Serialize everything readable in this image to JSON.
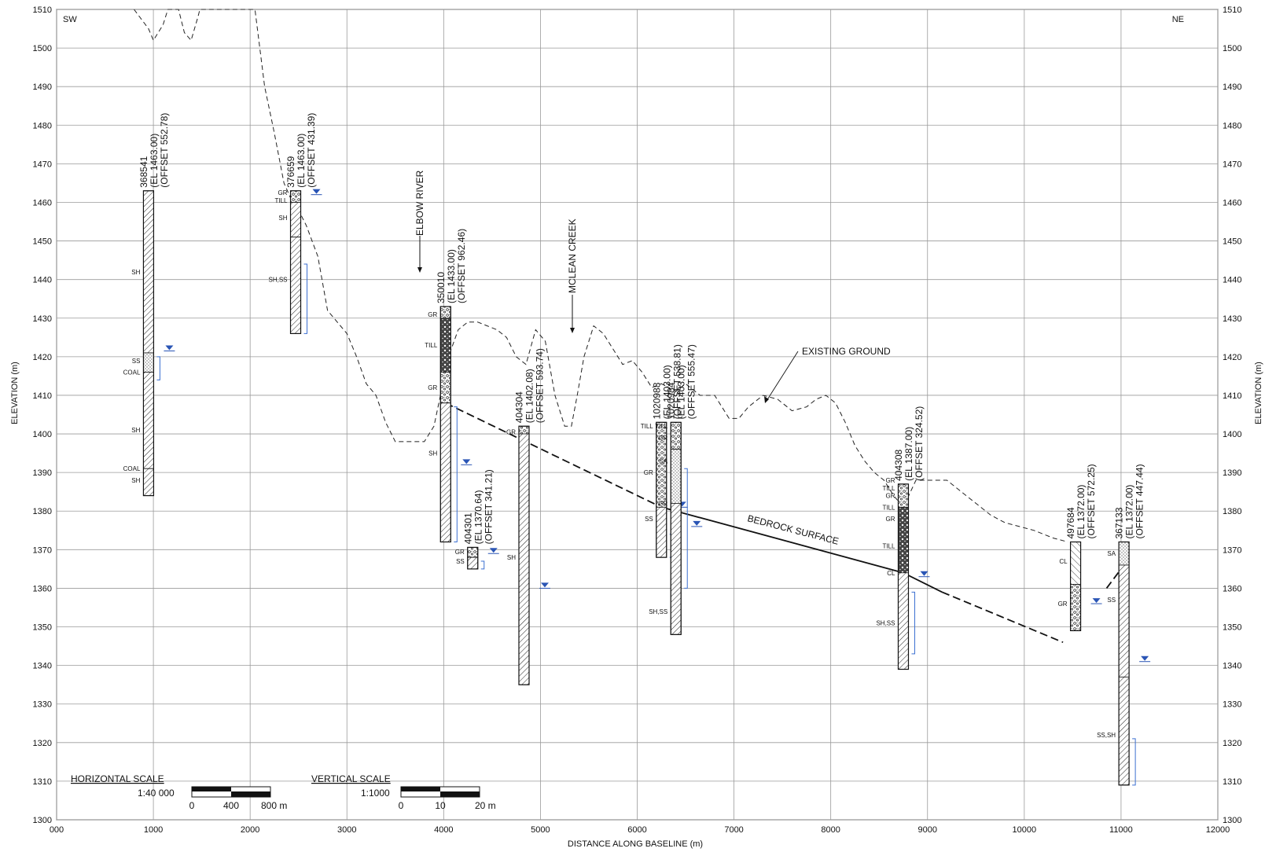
{
  "corners": {
    "left": "SW",
    "right": "NE"
  },
  "axes": {
    "x_title": "DISTANCE ALONG BASELINE (m)",
    "y_title_left": "ELEVATION (m)",
    "y_title_right": "ELEVATION (m)",
    "x_ticks": [
      "000",
      "1000",
      "2000",
      "3000",
      "4000",
      "5000",
      "6000",
      "7000",
      "8000",
      "9000",
      "10000",
      "11000",
      "12000"
    ],
    "x_tick_values": [
      0,
      1000,
      2000,
      3000,
      4000,
      5000,
      6000,
      7000,
      8000,
      9000,
      10000,
      11000,
      12000
    ],
    "y_ticks": [
      1300,
      1310,
      1320,
      1330,
      1340,
      1350,
      1360,
      1370,
      1380,
      1390,
      1400,
      1410,
      1420,
      1430,
      1440,
      1450,
      1460,
      1470,
      1480,
      1490,
      1500,
      1510
    ],
    "xlim": [
      0,
      12000
    ],
    "ylim": [
      1300,
      1510
    ],
    "grid": true
  },
  "labels": {
    "river": "ELBOW  RIVER",
    "creek": "MCLEAN  CREEK",
    "ground": "EXISTING  GROUND",
    "bedrock": "BEDROCK SURFACE"
  },
  "scales": {
    "horizontal": {
      "title": "HORIZONTAL SCALE",
      "ratio": "1:40  000",
      "ticks": [
        "0",
        "400",
        "800 m"
      ]
    },
    "vertical": {
      "title": "VERTICAL SCALE",
      "ratio": "1:1000",
      "ticks": [
        "0",
        "10",
        "20 m"
      ]
    }
  },
  "boreholes": [
    {
      "id": "368541",
      "el": "(EL 1463.00)",
      "offset": "(OFFSET 552.78)",
      "x": 950,
      "top": 1463,
      "bottom": 1384,
      "water": 1421.5,
      "layers": [
        {
          "top": 1463,
          "bottom": 1421,
          "pat": "hatch"
        },
        {
          "top": 1421,
          "bottom": 1416,
          "pat": "dot"
        },
        {
          "top": 1416,
          "bottom": 1391,
          "pat": "hatch"
        },
        {
          "top": 1391,
          "bottom": 1384,
          "pat": "hatch"
        }
      ],
      "soils": [
        {
          "t": "SH",
          "e": 1442
        },
        {
          "t": "SS",
          "e": 1419
        },
        {
          "t": "COAL",
          "e": 1416
        },
        {
          "t": "SH",
          "e": 1401
        },
        {
          "t": "COAL",
          "e": 1391
        },
        {
          "t": "SH",
          "e": 1388
        }
      ],
      "screen": [
        1420,
        1414
      ]
    },
    {
      "id": "376659",
      "el": "(EL 1463.00)",
      "offset": "(OFFSET 431.39)",
      "x": 2470,
      "top": 1463,
      "bottom": 1426,
      "water": 1462,
      "layers": [
        {
          "top": 1463,
          "bottom": 1460,
          "pat": "gravel"
        },
        {
          "top": 1460,
          "bottom": 1451,
          "pat": "hatch"
        },
        {
          "top": 1451,
          "bottom": 1426,
          "pat": "hatch"
        }
      ],
      "soils": [
        {
          "t": "GR",
          "e": 1462.5
        },
        {
          "t": "TILL",
          "e": 1460.5
        },
        {
          "t": "SH",
          "e": 1456
        },
        {
          "t": "SH,SS",
          "e": 1440
        }
      ],
      "screen": [
        1444,
        1426
      ]
    },
    {
      "id": "350010",
      "el": "(EL 1433.00)",
      "offset": "(OFFSET 962.46)",
      "x": 4020,
      "top": 1433,
      "bottom": 1372,
      "water": 1392,
      "layers": [
        {
          "top": 1433,
          "bottom": 1430,
          "pat": "gravel"
        },
        {
          "top": 1430,
          "bottom": 1416,
          "pat": "till"
        },
        {
          "top": 1416,
          "bottom": 1408,
          "pat": "gravel"
        },
        {
          "top": 1408,
          "bottom": 1372,
          "pat": "hatch"
        }
      ],
      "soils": [
        {
          "t": "GR",
          "e": 1431
        },
        {
          "t": "TILL",
          "e": 1423
        },
        {
          "t": "GR",
          "e": 1412
        },
        {
          "t": "SH",
          "e": 1395
        }
      ],
      "screen": [
        1407,
        1372
      ]
    },
    {
      "id": "404301",
      "el": "(EL 1370.64)",
      "offset": "(OFFSET 341.21)",
      "x": 4300,
      "top": 1370.6,
      "bottom": 1365,
      "water": 1369,
      "layers": [
        {
          "top": 1370.6,
          "bottom": 1368,
          "pat": "gravel"
        },
        {
          "top": 1368,
          "bottom": 1365,
          "pat": "hatch"
        }
      ],
      "soils": [
        {
          "t": "GR",
          "e": 1369.5
        },
        {
          "t": "SS",
          "e": 1367
        }
      ],
      "screen": [
        1367,
        1365
      ]
    },
    {
      "id": "404304",
      "el": "(EL 1402.08)",
      "offset": "(OFFSET 593.74)",
      "x": 4830,
      "top": 1402,
      "bottom": 1335,
      "water": 1360,
      "layers": [
        {
          "top": 1402,
          "bottom": 1400,
          "pat": "gravel"
        },
        {
          "top": 1400,
          "bottom": 1335,
          "pat": "hatch"
        }
      ],
      "soils": [
        {
          "t": "GR",
          "e": 1400.5
        },
        {
          "t": "SH",
          "e": 1368
        }
      ],
      "screen": null
    },
    {
      "id": "1020988",
      "el": "(EL 1403.00)",
      "offset": "(OFFSET 538.81)",
      "x": 6250,
      "top": 1403,
      "bottom": 1368,
      "water": 1381,
      "layers": [
        {
          "top": 1403,
          "bottom": 1381,
          "pat": "gravel"
        },
        {
          "top": 1381,
          "bottom": 1368,
          "pat": "hatch"
        }
      ],
      "soils": [
        {
          "t": "TILL",
          "e": 1402
        },
        {
          "t": "GR",
          "e": 1390
        },
        {
          "t": "SS",
          "e": 1378
        }
      ],
      "screen": [
        1374,
        1368
      ]
    },
    {
      "id": "1020984",
      "el": "(EL 1403.00)",
      "offset": "(OFFSET 555.47)",
      "x": 6400,
      "top": 1403,
      "bottom": 1348,
      "water": 1376,
      "layers": [
        {
          "top": 1403,
          "bottom": 1396,
          "pat": "gravel"
        },
        {
          "top": 1396,
          "bottom": 1382,
          "pat": "dot"
        },
        {
          "top": 1382,
          "bottom": 1348,
          "pat": "hatch"
        }
      ],
      "soils": [
        {
          "t": "TILL",
          "e": 1402
        },
        {
          "t": "GR",
          "e": 1399
        },
        {
          "t": "SA",
          "e": 1393
        },
        {
          "t": "GR",
          "e": 1382
        },
        {
          "t": "SH,SS",
          "e": 1354
        }
      ],
      "screen": [
        1391,
        1360
      ]
    },
    {
      "id": "404308",
      "el": "(EL 1387.00)",
      "offset": "(OFFSET 324.52)",
      "x": 8750,
      "top": 1387,
      "bottom": 1339,
      "water": 1363,
      "layers": [
        {
          "top": 1387,
          "bottom": 1381,
          "pat": "gravel"
        },
        {
          "top": 1381,
          "bottom": 1364,
          "pat": "till"
        },
        {
          "top": 1364,
          "bottom": 1339,
          "pat": "hatch"
        }
      ],
      "soils": [
        {
          "t": "GR",
          "e": 1388
        },
        {
          "t": "TILL",
          "e": 1386
        },
        {
          "t": "GR",
          "e": 1384
        },
        {
          "t": "TILL",
          "e": 1381
        },
        {
          "t": "GR",
          "e": 1378
        },
        {
          "t": "TILL",
          "e": 1371
        },
        {
          "t": "CL",
          "e": 1364
        },
        {
          "t": "SH,SS",
          "e": 1351
        }
      ],
      "screen": [
        1359,
        1343
      ]
    },
    {
      "id": "497684",
      "el": "(EL 1372.00)",
      "offset": "(OFFSET 572.25)",
      "x": 10530,
      "top": 1372,
      "bottom": 1349,
      "water": 1356,
      "layers": [
        {
          "top": 1372,
          "bottom": 1361,
          "pat": "cl"
        },
        {
          "top": 1361,
          "bottom": 1349,
          "pat": "gravel"
        }
      ],
      "soils": [
        {
          "t": "CL",
          "e": 1367
        },
        {
          "t": "GR",
          "e": 1356
        }
      ],
      "screen": null
    },
    {
      "id": "367133",
      "el": "(EL 1372.00)",
      "offset": "(OFFSET 447.44)",
      "x": 11030,
      "top": 1372,
      "bottom": 1309,
      "water": 1341,
      "layers": [
        {
          "top": 1372,
          "bottom": 1366,
          "pat": "dot"
        },
        {
          "top": 1366,
          "bottom": 1337,
          "pat": "hatch"
        },
        {
          "top": 1337,
          "bottom": 1309,
          "pat": "hatch"
        }
      ],
      "soils": [
        {
          "t": "SA",
          "e": 1369
        },
        {
          "t": "SS",
          "e": 1357
        },
        {
          "t": "SS,SH",
          "e": 1322
        }
      ],
      "screen": [
        1321,
        1309
      ]
    }
  ],
  "ground_profile": [
    [
      800,
      1510
    ],
    [
      950,
      1505
    ],
    [
      1000,
      1502
    ],
    [
      1100,
      1506
    ],
    [
      1150,
      1510
    ],
    [
      1260,
      1510
    ],
    [
      1320,
      1504
    ],
    [
      1390,
      1502
    ],
    [
      1460,
      1508
    ],
    [
      1480,
      1510
    ],
    [
      2050,
      1510
    ],
    [
      2150,
      1490
    ],
    [
      2250,
      1478
    ],
    [
      2350,
      1465
    ],
    [
      2420,
      1461
    ],
    [
      2500,
      1458
    ],
    [
      2580,
      1454
    ],
    [
      2700,
      1446
    ],
    [
      2800,
      1432
    ],
    [
      2900,
      1429
    ],
    [
      3000,
      1426
    ],
    [
      3100,
      1420
    ],
    [
      3200,
      1413
    ],
    [
      3300,
      1410
    ],
    [
      3400,
      1403
    ],
    [
      3500,
      1398
    ],
    [
      3600,
      1398
    ],
    [
      3700,
      1398
    ],
    [
      3800,
      1398
    ],
    [
      3900,
      1402
    ],
    [
      4050,
      1420
    ],
    [
      4150,
      1427
    ],
    [
      4250,
      1429
    ],
    [
      4350,
      1429
    ],
    [
      4450,
      1428
    ],
    [
      4550,
      1427
    ],
    [
      4650,
      1425
    ],
    [
      4750,
      1420
    ],
    [
      4850,
      1418
    ],
    [
      4950,
      1427
    ],
    [
      5050,
      1424
    ],
    [
      5150,
      1410
    ],
    [
      5250,
      1402
    ],
    [
      5320,
      1402
    ],
    [
      5380,
      1410
    ],
    [
      5450,
      1420
    ],
    [
      5550,
      1428
    ],
    [
      5650,
      1426
    ],
    [
      5750,
      1422
    ],
    [
      5850,
      1418
    ],
    [
      5950,
      1419
    ],
    [
      6050,
      1416
    ],
    [
      6150,
      1412
    ],
    [
      6250,
      1413
    ],
    [
      6400,
      1411
    ],
    [
      6500,
      1413
    ],
    [
      6650,
      1410
    ],
    [
      6800,
      1410
    ],
    [
      6950,
      1404
    ],
    [
      7050,
      1404
    ],
    [
      7150,
      1407
    ],
    [
      7300,
      1410
    ],
    [
      7450,
      1409
    ],
    [
      7600,
      1406
    ],
    [
      7750,
      1407
    ],
    [
      7850,
      1409
    ],
    [
      7950,
      1410
    ],
    [
      8050,
      1408
    ],
    [
      8150,
      1403
    ],
    [
      8250,
      1397
    ],
    [
      8350,
      1393
    ],
    [
      8450,
      1390
    ],
    [
      8550,
      1388
    ],
    [
      8650,
      1384
    ],
    [
      8750,
      1381
    ],
    [
      8880,
      1388
    ],
    [
      8950,
      1388
    ],
    [
      9050,
      1388
    ],
    [
      9200,
      1388
    ],
    [
      9350,
      1385
    ],
    [
      9500,
      1382
    ],
    [
      9650,
      1379
    ],
    [
      9800,
      1377
    ],
    [
      9950,
      1376
    ],
    [
      10100,
      1375
    ],
    [
      10300,
      1373
    ],
    [
      10450,
      1372
    ]
  ],
  "bedrock_solid": [
    [
      6250,
      1381
    ],
    [
      8750,
      1364
    ],
    [
      9150,
      1359
    ]
  ],
  "bedrock_dashed_1": [
    [
      4020,
      1408
    ],
    [
      6250,
      1381
    ]
  ],
  "bedrock_dashed_2": [
    [
      9150,
      1359
    ],
    [
      10400,
      1346
    ]
  ],
  "bedrock_dashed_3": [
    [
      10850,
      1360
    ],
    [
      11030,
      1366
    ]
  ]
}
